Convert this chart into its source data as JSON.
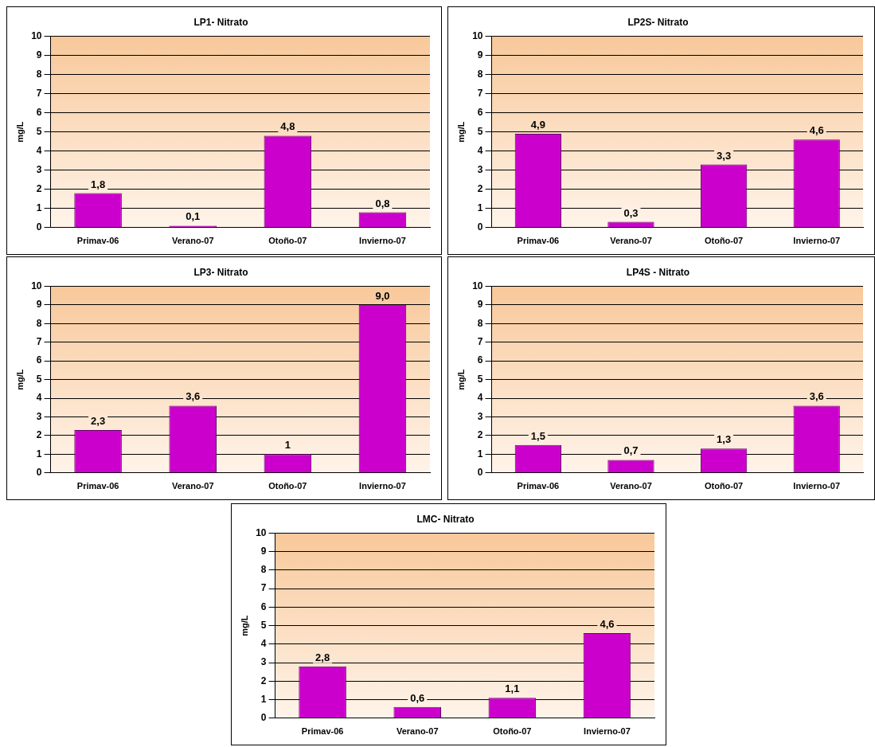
{
  "chart_data": [
    {
      "type": "bar",
      "title": "LP1- Nitrato",
      "ylabel": "mg/L",
      "categories": [
        "Primav-06",
        "Verano-07",
        "Otoño-07",
        "Invierno-07"
      ],
      "values": [
        1.8,
        0.1,
        4.8,
        0.8
      ],
      "value_labels": [
        "1,8",
        "0,1",
        "4,8",
        "0,8"
      ],
      "color": "#cc00cc",
      "ylim": [
        0,
        10
      ],
      "yticks": [
        0,
        1,
        2,
        3,
        4,
        5,
        6,
        7,
        8,
        9,
        10
      ],
      "grid": "y"
    },
    {
      "type": "bar",
      "title": "LP2S- Nitrato",
      "ylabel": "mg/L",
      "categories": [
        "Primav-06",
        "Verano-07",
        "Otoño-07",
        "Invierno-07"
      ],
      "values": [
        4.9,
        0.3,
        3.3,
        4.6
      ],
      "value_labels": [
        "4,9",
        "0,3",
        "3,3",
        "4,6"
      ],
      "color": "#cc00cc",
      "ylim": [
        0,
        10
      ],
      "yticks": [
        0,
        1,
        2,
        3,
        4,
        5,
        6,
        7,
        8,
        9,
        10
      ],
      "grid": "y"
    },
    {
      "type": "bar",
      "title": "LP3- Nitrato",
      "ylabel": "mg/L",
      "categories": [
        "Primav-06",
        "Verano-07",
        "Otoño-07",
        "Invierno-07"
      ],
      "values": [
        2.3,
        3.6,
        1,
        9.0
      ],
      "value_labels": [
        "2,3",
        "3,6",
        "1",
        "9,0"
      ],
      "color": "#cc00cc",
      "ylim": [
        0,
        10
      ],
      "yticks": [
        0,
        1,
        2,
        3,
        4,
        5,
        6,
        7,
        8,
        9,
        10
      ],
      "grid": "y"
    },
    {
      "type": "bar",
      "title": "LP4S - Nitrato",
      "ylabel": "mg/L",
      "categories": [
        "Primav-06",
        "Verano-07",
        "Otoño-07",
        "Invierno-07"
      ],
      "values": [
        1.5,
        0.7,
        1.3,
        3.6
      ],
      "value_labels": [
        "1,5",
        "0,7",
        "1,3",
        "3,6"
      ],
      "color": "#cc00cc",
      "ylim": [
        0,
        10
      ],
      "yticks": [
        0,
        1,
        2,
        3,
        4,
        5,
        6,
        7,
        8,
        9,
        10
      ],
      "grid": "y"
    },
    {
      "type": "bar",
      "title": "LMC- Nitrato",
      "ylabel": "mg/L",
      "categories": [
        "Primav-06",
        "Verano-07",
        "Otoño-07",
        "Invierno-07"
      ],
      "values": [
        2.8,
        0.6,
        1.1,
        4.6
      ],
      "value_labels": [
        "2,8",
        "0,6",
        "1,1",
        "4,6"
      ],
      "color": "#cc00cc",
      "ylim": [
        0,
        10
      ],
      "yticks": [
        0,
        1,
        2,
        3,
        4,
        5,
        6,
        7,
        8,
        9,
        10
      ],
      "grid": "y"
    }
  ]
}
